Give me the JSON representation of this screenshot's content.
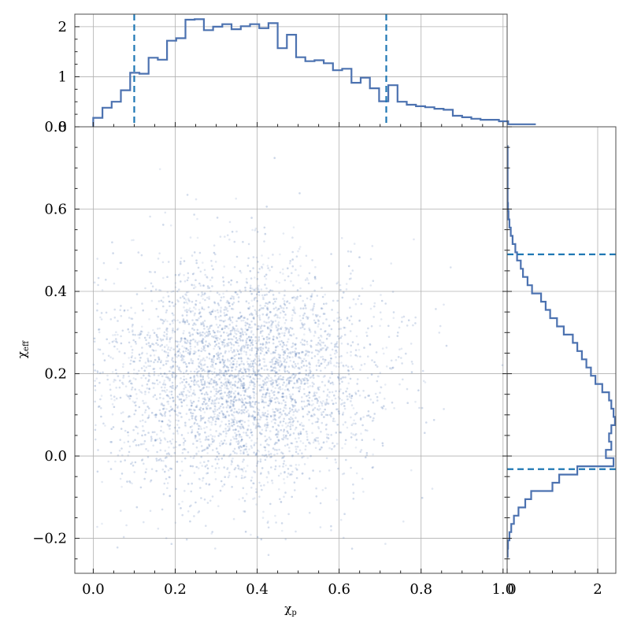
{
  "chart_data": {
    "type": "scatter",
    "title": "",
    "main": {
      "xlabel": "χ_p",
      "ylabel": "χ_eff",
      "xlim": [
        -0.045,
        1.01
      ],
      "ylim": [
        -0.285,
        0.8
      ],
      "xticks": [
        0.0,
        0.2,
        0.4,
        0.6,
        0.8,
        1.0
      ],
      "xtick_labels": [
        "0.0",
        "0.2",
        "0.4",
        "0.6",
        "0.8",
        "1.0"
      ],
      "yticks": [
        -0.2,
        0.0,
        0.2,
        0.4,
        0.6,
        0.8
      ],
      "ytick_labels": [
        "−0.2",
        "0.0",
        "0.2",
        "0.4",
        "0.6",
        "0.8"
      ],
      "grid": true,
      "point_color": "#4c72b0",
      "point_distribution": {
        "count": 4000,
        "x_mean": 0.36,
        "x_std": 0.17,
        "x_range": [
          0.0,
          1.0
        ],
        "y_mean": 0.19,
        "y_std": 0.14,
        "y_range": [
          -0.25,
          0.77
        ]
      }
    },
    "top_histogram": {
      "variable": "χ_p",
      "ylim": [
        0,
        2.25
      ],
      "yticks": [
        0,
        1,
        2
      ],
      "ytick_labels": [
        "0",
        "1",
        "2"
      ],
      "bin_edges_start": 0.0,
      "bin_width": 0.0225,
      "densities": [
        0.18,
        0.38,
        0.5,
        0.73,
        1.08,
        1.06,
        1.38,
        1.34,
        1.72,
        1.77,
        2.14,
        2.15,
        1.93,
        2.0,
        2.05,
        1.95,
        2.01,
        2.05,
        1.97,
        2.07,
        1.57,
        1.84,
        1.39,
        1.31,
        1.33,
        1.27,
        1.13,
        1.16,
        0.88,
        0.98,
        0.77,
        0.51,
        0.83,
        0.5,
        0.44,
        0.41,
        0.39,
        0.36,
        0.34,
        0.22,
        0.19,
        0.16,
        0.14,
        0.14,
        0.11,
        0.05,
        0.05,
        0.05
      ],
      "credible_interval": [
        0.1,
        0.715
      ],
      "line_color": "#4c72b0",
      "interval_color": "#1f77b4"
    },
    "right_histogram": {
      "variable": "χ_eff",
      "xlim": [
        0,
        2.4
      ],
      "xticks": [
        0,
        2
      ],
      "xtick_labels": [
        "0",
        "2"
      ],
      "bin_edges_start": -0.245,
      "bin_width": 0.02,
      "densities": [
        0.01,
        0.02,
        0.05,
        0.09,
        0.15,
        0.25,
        0.4,
        0.53,
        1.0,
        1.15,
        1.55,
        2.35,
        2.18,
        2.3,
        2.25,
        2.3,
        2.38,
        2.35,
        2.3,
        2.25,
        2.1,
        1.95,
        1.85,
        1.75,
        1.65,
        1.55,
        1.45,
        1.25,
        1.1,
        0.95,
        0.85,
        0.75,
        0.55,
        0.45,
        0.35,
        0.3,
        0.22,
        0.18,
        0.12,
        0.08,
        0.05,
        0.03,
        0.02,
        0.01,
        0.01,
        0.01,
        0.01,
        0.01,
        0.01,
        0.01
      ],
      "credible_interval": [
        -0.032,
        0.49
      ],
      "line_color": "#4c72b0",
      "interval_color": "#1f77b4"
    }
  }
}
